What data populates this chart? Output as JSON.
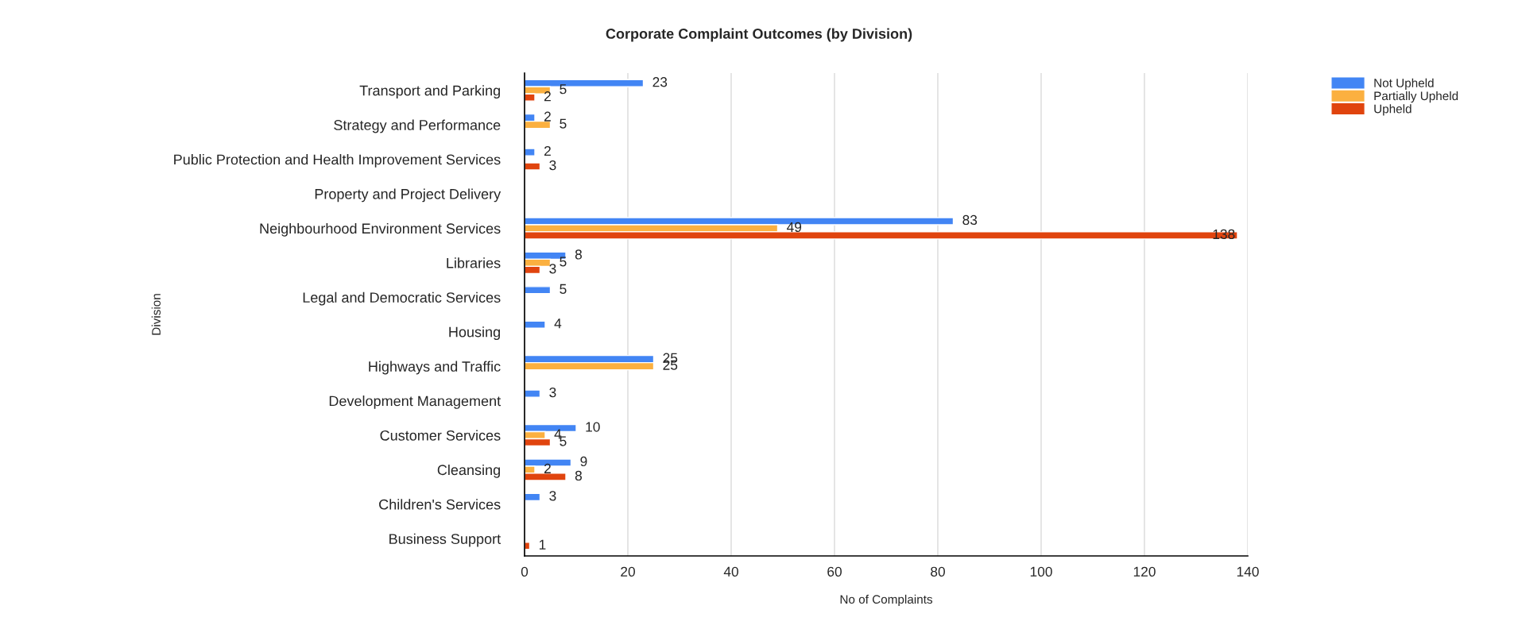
{
  "chart_data": {
    "type": "bar",
    "orientation": "horizontal",
    "title": "Corporate Complaint Outcomes (by Division)",
    "xlabel": "No of Complaints",
    "ylabel": "Division",
    "categories": [
      "Transport and Parking",
      "Strategy and Performance",
      "Public Protection and Health Improvement Services",
      "Property and Project Delivery",
      "Neighbourhood Environment Services",
      "Libraries",
      "Legal and Democratic Services",
      "Housing",
      "Highways and Traffic",
      "Development Management",
      "Customer Services",
      "Cleansing",
      "Children's Services",
      "Business Support"
    ],
    "series": [
      {
        "name": "Not Upheld",
        "color": "#4285f4",
        "values": [
          23,
          2,
          2,
          null,
          83,
          8,
          5,
          4,
          25,
          3,
          10,
          9,
          3,
          null
        ]
      },
      {
        "name": "Partially Upheld",
        "color": "#fbb040",
        "values": [
          5,
          5,
          null,
          null,
          49,
          5,
          null,
          null,
          25,
          null,
          4,
          2,
          null,
          null
        ]
      },
      {
        "name": "Upheld",
        "color": "#e0440e",
        "values": [
          2,
          null,
          3,
          null,
          138,
          3,
          null,
          null,
          null,
          null,
          5,
          8,
          null,
          1
        ]
      }
    ],
    "xlim": [
      0,
      140
    ],
    "xticks": [
      0,
      20,
      40,
      60,
      80,
      100,
      120,
      140
    ],
    "grid": "x",
    "legend": "top right",
    "data_labels": true
  }
}
